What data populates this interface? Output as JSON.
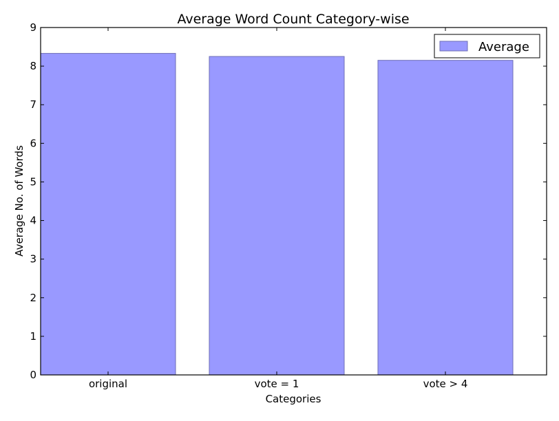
{
  "chart_data": {
    "type": "bar",
    "title": "Average Word Count Category-wise",
    "xlabel": "Categories",
    "ylabel": "Average No. of Words",
    "categories": [
      "original",
      "vote = 1",
      "vote > 4"
    ],
    "series": [
      {
        "name": "Average",
        "values": [
          8.33,
          8.25,
          8.15
        ]
      }
    ],
    "ylim": [
      0,
      9
    ],
    "yticks": [
      "0",
      "1",
      "2",
      "3",
      "4",
      "5",
      "6",
      "7",
      "8",
      "9"
    ],
    "grid": false,
    "legend_position": "top-right",
    "colors": {
      "bar_fill": "#9999ff",
      "bar_edge": "#6e6eb6",
      "axes": "#000000"
    }
  }
}
